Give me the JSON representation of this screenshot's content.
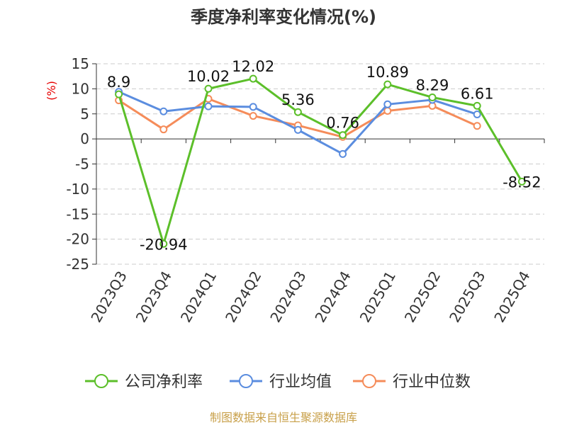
{
  "chart_data": {
    "type": "line",
    "title": "季度净利率变化情况(%)",
    "ylabel": "(%)",
    "categories": [
      "2023Q3",
      "2023Q4",
      "2024Q1",
      "2024Q2",
      "2024Q3",
      "2024Q4",
      "2025Q1",
      "2025Q2",
      "2025Q3",
      "2025Q4"
    ],
    "ylim": [
      -25,
      15
    ],
    "yticks": [
      15,
      10,
      5,
      0,
      -5,
      -10,
      -15,
      -20,
      -25
    ],
    "grid": "horizontal-dashed",
    "legend_position": "bottom",
    "series": [
      {
        "name": "公司净利率",
        "color": "#5cbf2a",
        "values": [
          8.9,
          -20.94,
          10.02,
          12.02,
          5.36,
          0.76,
          10.89,
          8.29,
          6.61,
          -8.52
        ],
        "labels": [
          "8.9",
          "-20.94",
          "10.02",
          "12.02",
          "5.36",
          "0.76",
          "10.89",
          "8.29",
          "6.61",
          "-8.52"
        ]
      },
      {
        "name": "行业均值",
        "color": "#5b8ddf",
        "values": [
          9.4,
          5.5,
          6.5,
          6.4,
          1.8,
          -3.0,
          6.9,
          7.8,
          4.9,
          null
        ]
      },
      {
        "name": "行业中位数",
        "color": "#f58c5a",
        "values": [
          7.7,
          1.9,
          8.0,
          4.6,
          2.7,
          0.4,
          5.6,
          6.6,
          2.6,
          null
        ]
      }
    ]
  },
  "footer": {
    "source": "制图数据来自恒生聚源数据库"
  }
}
